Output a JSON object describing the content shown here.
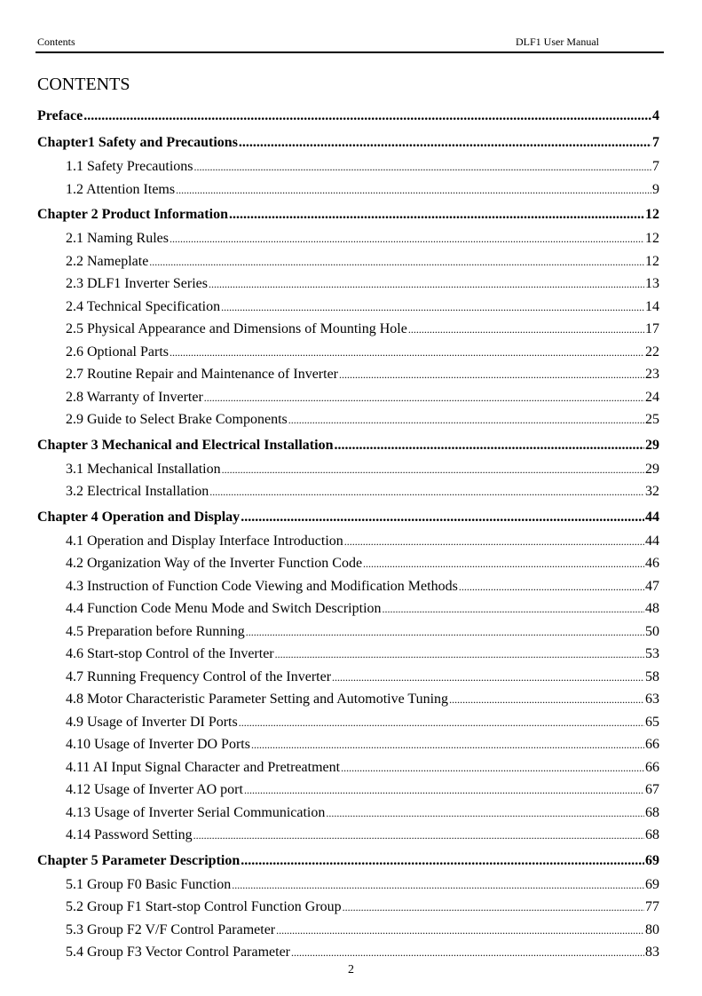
{
  "header": {
    "left": "Contents",
    "right": "DLF1 User Manual"
  },
  "title": "CONTENTS",
  "toc": [
    {
      "level": "ch",
      "label": "Preface",
      "page": "4"
    },
    {
      "level": "ch",
      "label": "Chapter1 Safety and Precautions",
      "page": "7"
    },
    {
      "level": "sub",
      "label": "1.1 Safety Precautions",
      "page": "7"
    },
    {
      "level": "sub",
      "label": "1.2 Attention Items",
      "page": "9"
    },
    {
      "level": "ch",
      "label": "Chapter 2 Product Information",
      "page": "12"
    },
    {
      "level": "sub",
      "label": "2.1 Naming Rules",
      "page": "12"
    },
    {
      "level": "sub",
      "label": "2.2 Nameplate",
      "page": "12"
    },
    {
      "level": "sub",
      "label": "2.3 DLF1 Inverter Series",
      "page": "13"
    },
    {
      "level": "sub",
      "label": "2.4 Technical Specification",
      "page": "14"
    },
    {
      "level": "sub",
      "label": "2.5 Physical Appearance and Dimensions of Mounting Hole",
      "page": "17"
    },
    {
      "level": "sub",
      "label": "2.6 Optional Parts",
      "page": "22"
    },
    {
      "level": "sub",
      "label": "2.7 Routine Repair and Maintenance of Inverter",
      "page": "23"
    },
    {
      "level": "sub",
      "label": "2.8 Warranty of Inverter",
      "page": "24"
    },
    {
      "level": "sub",
      "label": "2.9 Guide to Select Brake Components",
      "page": "25"
    },
    {
      "level": "ch",
      "label": "Chapter 3 Mechanical and Electrical Installation",
      "page": "29"
    },
    {
      "level": "sub",
      "label": "3.1 Mechanical Installation",
      "page": "29"
    },
    {
      "level": "sub",
      "label": "3.2 Electrical Installation",
      "page": "32"
    },
    {
      "level": "ch",
      "label": "Chapter 4 Operation and Display",
      "page": "44"
    },
    {
      "level": "sub",
      "label": "4.1 Operation and Display Interface Introduction",
      "page": "44"
    },
    {
      "level": "sub",
      "label": "4.2 Organization Way of the Inverter Function Code",
      "page": "46"
    },
    {
      "level": "sub",
      "label": "4.3 Instruction of Function Code Viewing and Modification Methods",
      "page": "47"
    },
    {
      "level": "sub",
      "label": "4.4 Function Code Menu Mode and Switch Description",
      "page": "48"
    },
    {
      "level": "sub",
      "label": "4.5 Preparation before Running",
      "page": "50"
    },
    {
      "level": "sub",
      "label": "4.6 Start-stop Control of the Inverter",
      "page": "53"
    },
    {
      "level": "sub",
      "label": "4.7 Running Frequency Control of the Inverter",
      "page": "58"
    },
    {
      "level": "sub",
      "label": "4.8 Motor Characteristic Parameter Setting and Automotive Tuning",
      "page": "63"
    },
    {
      "level": "sub",
      "label": "4.9 Usage of Inverter DI Ports",
      "page": "65"
    },
    {
      "level": "sub",
      "label": "4.10 Usage of Inverter DO Ports",
      "page": "66"
    },
    {
      "level": "sub",
      "label": "4.11 AI Input Signal Character and Pretreatment",
      "page": "66"
    },
    {
      "level": "sub",
      "label": "4.12 Usage of Inverter AO port",
      "page": "67"
    },
    {
      "level": "sub",
      "label": "4.13 Usage of Inverter Serial Communication",
      "page": "68"
    },
    {
      "level": "sub",
      "label": "4.14 Password Setting",
      "page": "68"
    },
    {
      "level": "ch",
      "label": "Chapter 5 Parameter Description",
      "page": "69"
    },
    {
      "level": "sub",
      "label": "5.1 Group F0 Basic Function",
      "page": "69"
    },
    {
      "level": "sub",
      "label": "5.2 Group F1 Start-stop Control Function Group",
      "page": "77"
    },
    {
      "level": "sub",
      "label": "5.3 Group F2 V/F Control Parameter",
      "page": "80"
    },
    {
      "level": "sub",
      "label": "5.4 Group F3 Vector Control Parameter",
      "page": "83"
    }
  ],
  "page_number": "2"
}
